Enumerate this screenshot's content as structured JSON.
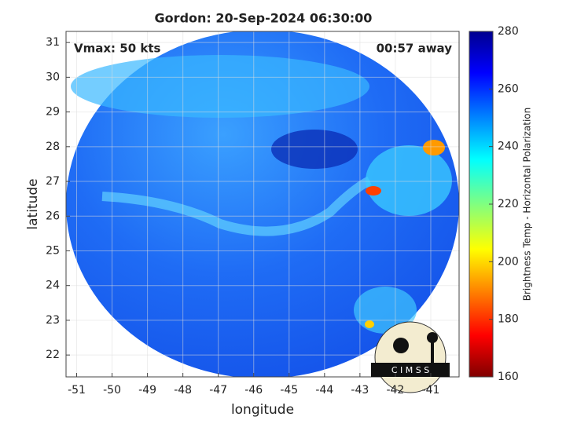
{
  "chart_data": {
    "type": "image",
    "title": "Gordon: 20-Sep-2024 06:30:00",
    "annotations": [
      "Vmax: 50 kts",
      "00:57 away"
    ],
    "xlabel": "longitude",
    "ylabel": "latitude",
    "xlim": [
      -51.3,
      -40.2
    ],
    "ylim": [
      21.37,
      31.32
    ],
    "xticks": [
      -51,
      -50,
      -49,
      -48,
      -47,
      -46,
      -45,
      -44,
      -43,
      -42,
      -41
    ],
    "yticks": [
      22,
      23,
      24,
      25,
      26,
      27,
      28,
      29,
      30,
      31
    ],
    "grid": true,
    "colorbar": {
      "label": "Brightness Temp - Horizontal Polarization",
      "colormap": "jet",
      "clim": [
        160,
        280
      ],
      "ticks": [
        160,
        180,
        200,
        220,
        240,
        260,
        280
      ]
    },
    "logo": "C I M S S"
  }
}
